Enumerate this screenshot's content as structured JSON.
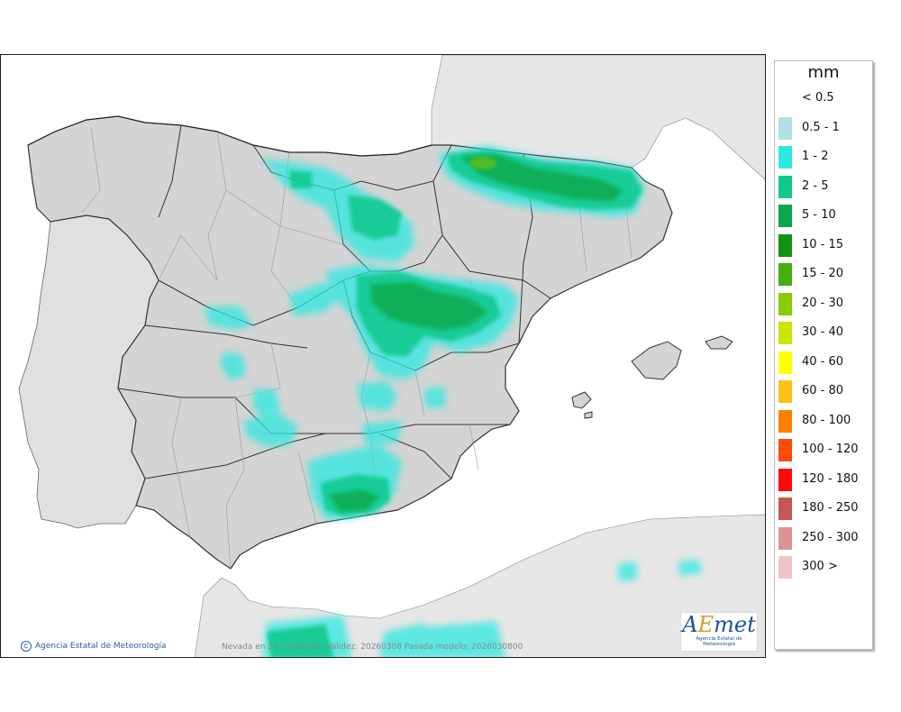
{
  "legend": {
    "unit": "mm",
    "items": [
      {
        "label": "< 0.5",
        "color": "#ffffff"
      },
      {
        "label": "0.5 - 1",
        "color": "#b2e0e6"
      },
      {
        "label": "1 - 2",
        "color": "#2ee8e0"
      },
      {
        "label": "2 - 5",
        "color": "#10c88a"
      },
      {
        "label": "5 - 10",
        "color": "#0aa84a"
      },
      {
        "label": "10 - 15",
        "color": "#129212"
      },
      {
        "label": "15 - 20",
        "color": "#44b010"
      },
      {
        "label": "20 - 30",
        "color": "#88cc00"
      },
      {
        "label": "30 - 40",
        "color": "#c8e600"
      },
      {
        "label": "40 - 60",
        "color": "#ffff00"
      },
      {
        "label": "60 - 80",
        "color": "#ffbf1a"
      },
      {
        "label": "80 - 100",
        "color": "#ff8000"
      },
      {
        "label": "100 - 120",
        "color": "#ff4a0a"
      },
      {
        "label": "120 - 180",
        "color": "#ff0a0a"
      },
      {
        "label": "180 - 250",
        "color": "#c85656"
      },
      {
        "label": "250 - 300",
        "color": "#dd9393"
      },
      {
        "label": "300 >",
        "color": "#f0c4c4"
      }
    ]
  },
  "footer": {
    "credit_symbol": "C",
    "credit": "Agencia Estatal de Meteorología",
    "info": "Nevada en 24 h máxima. Validez: 20260308 Pasada modelo: 2026030800"
  },
  "logo": {
    "name_a": "A",
    "name_e": "E",
    "name_rest": "met",
    "subtitle": "Agencia Estatal de Meteorología"
  },
  "colors": {
    "sea": "#ffffff",
    "land_spain": "#d6d6d6",
    "land_other": "#e4e4e4",
    "borders": "#333333"
  }
}
